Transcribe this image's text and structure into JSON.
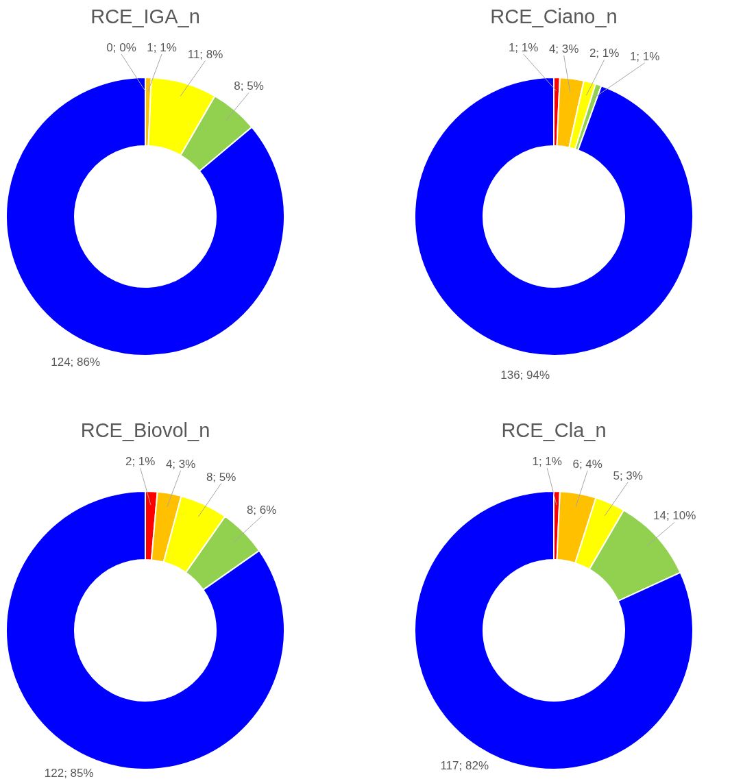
{
  "chart_data": [
    {
      "type": "donut",
      "title": "RCE_IGA_n",
      "categories": [
        null,
        null,
        null,
        null,
        null
      ],
      "values": [
        0,
        1,
        11,
        8,
        124
      ],
      "colors": [
        "#ff0000",
        "#ffc000",
        "#ffff00",
        "#92d050",
        "#0000ff"
      ],
      "value_labels": [
        "0; 0%",
        "1; 1%",
        "11; 8%",
        "8; 5%",
        "124; 86%"
      ]
    },
    {
      "type": "donut",
      "title": "RCE_Ciano_n",
      "categories": [
        null,
        null,
        null,
        null,
        null
      ],
      "values": [
        1,
        4,
        2,
        1,
        136
      ],
      "colors": [
        "#ff0000",
        "#ffc000",
        "#ffff00",
        "#92d050",
        "#0000ff"
      ],
      "value_labels": [
        "1; 1%",
        "4; 3%",
        "2; 1%",
        "1; 1%",
        "136; 94%"
      ]
    },
    {
      "type": "donut",
      "title": "RCE_Biovol_n",
      "categories": [
        null,
        null,
        null,
        null,
        null
      ],
      "values": [
        2,
        4,
        8,
        8,
        122
      ],
      "colors": [
        "#ff0000",
        "#ffc000",
        "#ffff00",
        "#92d050",
        "#0000ff"
      ],
      "value_labels": [
        "2; 1%",
        "4; 3%",
        "8; 5%",
        "8; 6%",
        "122; 85%"
      ]
    },
    {
      "type": "donut",
      "title": "RCE_Cla_n",
      "categories": [
        null,
        null,
        null,
        null,
        null
      ],
      "values": [
        1,
        6,
        5,
        14,
        117
      ],
      "colors": [
        "#ff0000",
        "#ffc000",
        "#ffff00",
        "#92d050",
        "#0000ff"
      ],
      "value_labels": [
        "1; 1%",
        "6; 4%",
        "5; 3%",
        "14; 10%",
        "117; 82%"
      ]
    }
  ]
}
